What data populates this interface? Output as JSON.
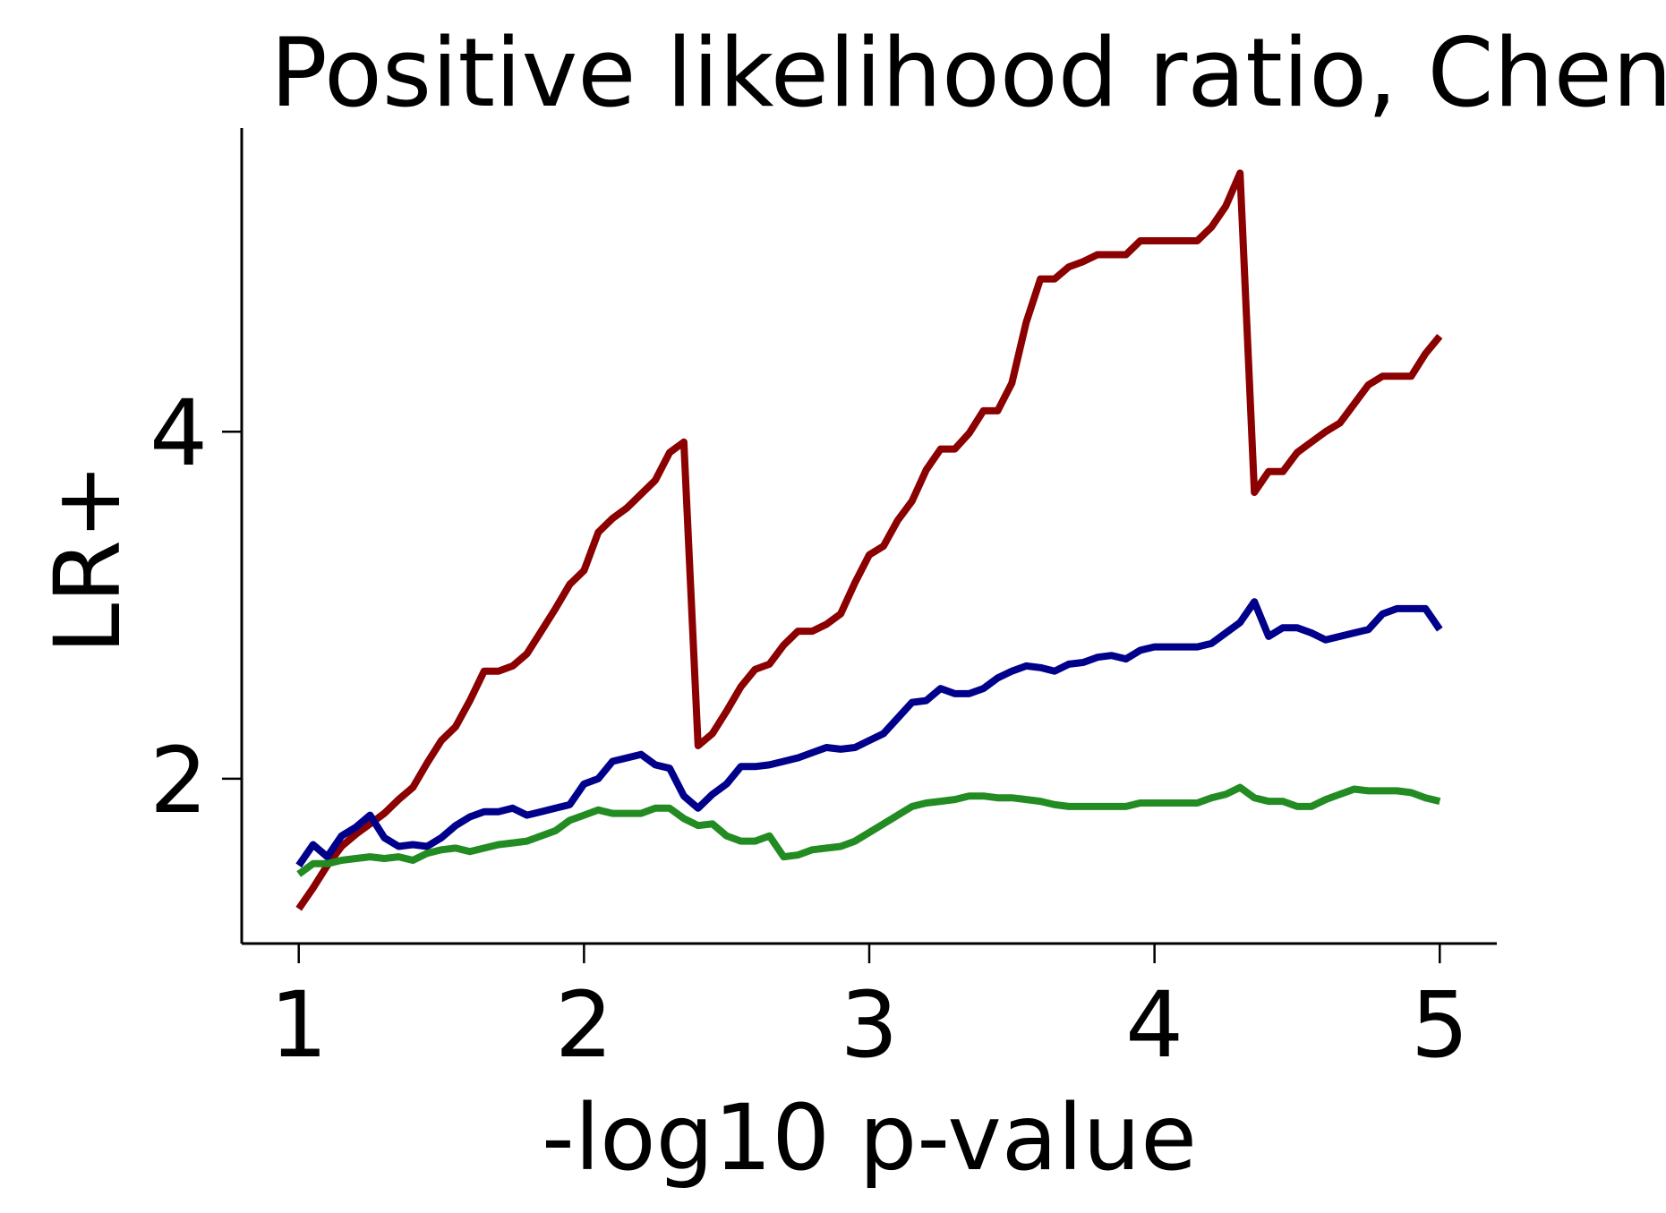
{
  "chart_data": {
    "type": "line",
    "title": "Positive likelihood ratio, Chen",
    "xlabel": "-log10 p-value",
    "ylabel": "LR+",
    "xlim": [
      0.8,
      5.2
    ],
    "ylim": [
      1.05,
      5.75
    ],
    "xticks": [
      1,
      2,
      3,
      4,
      5
    ],
    "yticks": [
      2,
      4
    ],
    "grid": false,
    "legend": "none",
    "series": [
      {
        "color": "#8b0000",
        "x": [
          1.0,
          1.05,
          1.1,
          1.15,
          1.2,
          1.25,
          1.3,
          1.35,
          1.4,
          1.45,
          1.5,
          1.55,
          1.6,
          1.65,
          1.7,
          1.75,
          1.8,
          1.85,
          1.9,
          1.95,
          2.0,
          2.05,
          2.1,
          2.15,
          2.2,
          2.25,
          2.3,
          2.35,
          2.4,
          2.45,
          2.5,
          2.55,
          2.6,
          2.65,
          2.7,
          2.75,
          2.8,
          2.85,
          2.9,
          2.95,
          3.0,
          3.05,
          3.1,
          3.15,
          3.2,
          3.25,
          3.3,
          3.35,
          3.4,
          3.45,
          3.5,
          3.55,
          3.6,
          3.65,
          3.7,
          3.75,
          3.8,
          3.85,
          3.9,
          3.95,
          4.0,
          4.05,
          4.1,
          4.15,
          4.2,
          4.25,
          4.3,
          4.35,
          4.4,
          4.45,
          4.5,
          4.55,
          4.6,
          4.65,
          4.7,
          4.75,
          4.8,
          4.85,
          4.9,
          4.95,
          5.0
        ],
        "y": [
          1.25,
          1.37,
          1.5,
          1.61,
          1.68,
          1.74,
          1.8,
          1.88,
          1.95,
          2.09,
          2.22,
          2.3,
          2.45,
          2.62,
          2.62,
          2.65,
          2.72,
          2.85,
          2.98,
          3.12,
          3.2,
          3.42,
          3.5,
          3.56,
          3.64,
          3.72,
          3.88,
          3.94,
          2.19,
          2.26,
          2.39,
          2.53,
          2.63,
          2.66,
          2.77,
          2.85,
          2.85,
          2.89,
          2.95,
          3.13,
          3.29,
          3.34,
          3.49,
          3.6,
          3.78,
          3.9,
          3.9,
          3.99,
          4.12,
          4.12,
          4.28,
          4.63,
          4.88,
          4.88,
          4.95,
          4.98,
          5.02,
          5.02,
          5.02,
          5.1,
          5.1,
          5.1,
          5.1,
          5.1,
          5.18,
          5.3,
          5.49,
          3.65,
          3.77,
          3.77,
          3.88,
          3.94,
          4.0,
          4.05,
          4.16,
          4.27,
          4.32,
          4.32,
          4.32,
          4.45,
          4.55
        ]
      },
      {
        "color": "#00008b",
        "x": [
          1.0,
          1.05,
          1.1,
          1.15,
          1.2,
          1.25,
          1.3,
          1.35,
          1.4,
          1.45,
          1.5,
          1.55,
          1.6,
          1.65,
          1.7,
          1.75,
          1.8,
          1.85,
          1.9,
          1.95,
          2.0,
          2.05,
          2.1,
          2.15,
          2.2,
          2.25,
          2.3,
          2.35,
          2.4,
          2.45,
          2.5,
          2.55,
          2.6,
          2.65,
          2.7,
          2.75,
          2.8,
          2.85,
          2.9,
          2.95,
          3.0,
          3.05,
          3.1,
          3.15,
          3.2,
          3.25,
          3.3,
          3.35,
          3.4,
          3.45,
          3.5,
          3.55,
          3.6,
          3.65,
          3.7,
          3.75,
          3.8,
          3.85,
          3.9,
          3.95,
          4.0,
          4.05,
          4.1,
          4.15,
          4.2,
          4.25,
          4.3,
          4.35,
          4.4,
          4.45,
          4.5,
          4.55,
          4.6,
          4.65,
          4.7,
          4.75,
          4.8,
          4.85,
          4.9,
          4.95,
          5.0
        ],
        "y": [
          1.5,
          1.62,
          1.55,
          1.67,
          1.72,
          1.79,
          1.66,
          1.61,
          1.62,
          1.61,
          1.66,
          1.73,
          1.78,
          1.81,
          1.81,
          1.83,
          1.79,
          1.81,
          1.83,
          1.85,
          1.97,
          2.0,
          2.1,
          2.12,
          2.14,
          2.08,
          2.06,
          1.9,
          1.83,
          1.91,
          1.97,
          2.07,
          2.07,
          2.08,
          2.1,
          2.12,
          2.15,
          2.18,
          2.17,
          2.18,
          2.22,
          2.26,
          2.35,
          2.44,
          2.45,
          2.52,
          2.49,
          2.49,
          2.52,
          2.58,
          2.62,
          2.65,
          2.64,
          2.62,
          2.66,
          2.67,
          2.7,
          2.71,
          2.69,
          2.74,
          2.76,
          2.76,
          2.76,
          2.76,
          2.78,
          2.84,
          2.9,
          3.02,
          2.82,
          2.87,
          2.87,
          2.84,
          2.8,
          2.82,
          2.84,
          2.86,
          2.95,
          2.98,
          2.98,
          2.98,
          2.86
        ]
      },
      {
        "color": "#228b22",
        "x": [
          1.0,
          1.05,
          1.1,
          1.15,
          1.2,
          1.25,
          1.3,
          1.35,
          1.4,
          1.45,
          1.5,
          1.55,
          1.6,
          1.65,
          1.7,
          1.75,
          1.8,
          1.85,
          1.9,
          1.95,
          2.0,
          2.05,
          2.1,
          2.15,
          2.2,
          2.25,
          2.3,
          2.35,
          2.4,
          2.45,
          2.5,
          2.55,
          2.6,
          2.65,
          2.7,
          2.75,
          2.8,
          2.85,
          2.9,
          2.95,
          3.0,
          3.05,
          3.1,
          3.15,
          3.2,
          3.25,
          3.3,
          3.35,
          3.4,
          3.45,
          3.5,
          3.55,
          3.6,
          3.65,
          3.7,
          3.75,
          3.8,
          3.85,
          3.9,
          3.95,
          4.0,
          4.05,
          4.1,
          4.15,
          4.2,
          4.25,
          4.3,
          4.35,
          4.4,
          4.45,
          4.5,
          4.55,
          4.6,
          4.65,
          4.7,
          4.75,
          4.8,
          4.85,
          4.9,
          4.95,
          5.0
        ],
        "y": [
          1.45,
          1.51,
          1.51,
          1.53,
          1.54,
          1.55,
          1.54,
          1.55,
          1.53,
          1.57,
          1.59,
          1.6,
          1.58,
          1.6,
          1.62,
          1.63,
          1.64,
          1.67,
          1.7,
          1.76,
          1.79,
          1.82,
          1.8,
          1.8,
          1.8,
          1.83,
          1.83,
          1.77,
          1.73,
          1.74,
          1.67,
          1.64,
          1.64,
          1.67,
          1.55,
          1.56,
          1.59,
          1.6,
          1.61,
          1.64,
          1.69,
          1.74,
          1.79,
          1.84,
          1.86,
          1.87,
          1.88,
          1.9,
          1.9,
          1.89,
          1.89,
          1.88,
          1.87,
          1.85,
          1.84,
          1.84,
          1.84,
          1.84,
          1.84,
          1.86,
          1.86,
          1.86,
          1.86,
          1.86,
          1.89,
          1.91,
          1.95,
          1.89,
          1.87,
          1.87,
          1.84,
          1.84,
          1.88,
          1.91,
          1.94,
          1.93,
          1.93,
          1.93,
          1.92,
          1.89,
          1.87
        ]
      }
    ]
  }
}
